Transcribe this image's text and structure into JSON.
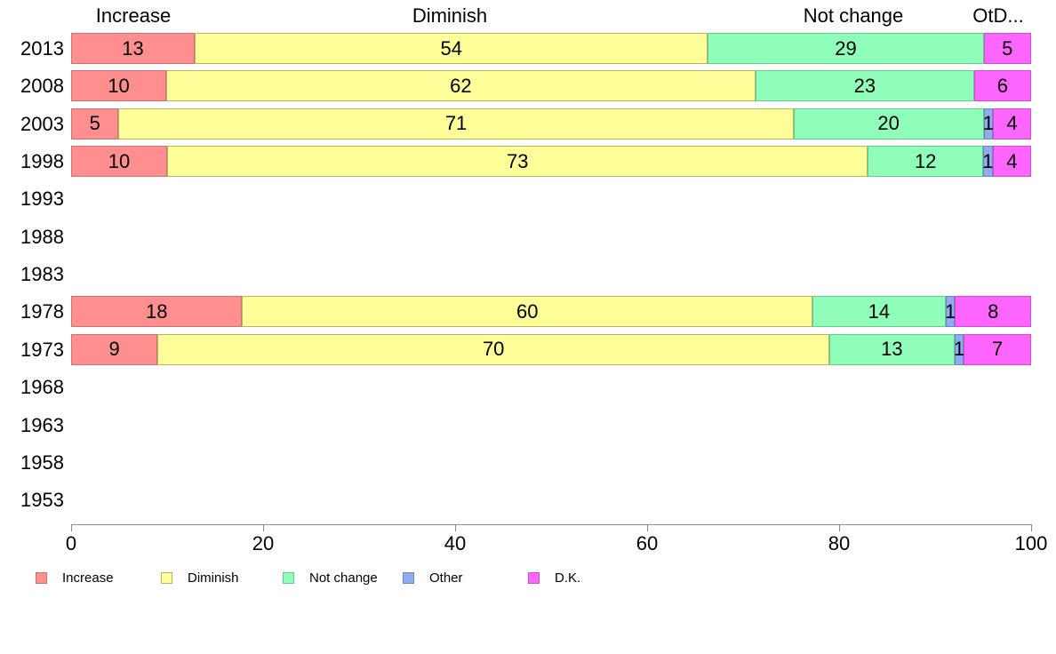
{
  "chart_data": {
    "type": "bar",
    "orientation": "horizontal",
    "stacked": true,
    "categories": [
      "2013",
      "2008",
      "2003",
      "1998",
      "1993",
      "1988",
      "1983",
      "1978",
      "1973",
      "1968",
      "1963",
      "1958",
      "1953"
    ],
    "series": [
      {
        "name": "Increase",
        "color": "#FF8E8E",
        "border_color": "#c97474",
        "values": [
          13,
          10,
          5,
          10,
          null,
          null,
          null,
          18,
          9,
          null,
          null,
          null,
          null
        ]
      },
      {
        "name": "Diminish",
        "color": "#FFFF99",
        "border_color": "#b5b562",
        "values": [
          54,
          62,
          71,
          73,
          null,
          null,
          null,
          60,
          70,
          null,
          null,
          null,
          null
        ]
      },
      {
        "name": "Not change",
        "color": "#90FFB9",
        "border_color": "#67c98b",
        "values": [
          29,
          23,
          20,
          12,
          null,
          null,
          null,
          14,
          13,
          null,
          null,
          null,
          null
        ]
      },
      {
        "name": "Other",
        "color": "#8FADEE",
        "border_color": "#6786c6",
        "values": [
          0,
          0,
          1,
          1,
          null,
          null,
          null,
          1,
          1,
          null,
          null,
          null,
          null
        ]
      },
      {
        "name": "D.K.",
        "color": "#FF66FF",
        "border_color": "#cc4fcc",
        "values": [
          5,
          6,
          4,
          4,
          null,
          null,
          null,
          8,
          7,
          null,
          null,
          null,
          null
        ]
      }
    ],
    "column_headers": [
      "Increase",
      "Diminish",
      "Not change",
      "OtD..."
    ],
    "x_axis": {
      "min": 0,
      "max": 100,
      "ticks": [
        "0",
        "20",
        "40",
        "60",
        "80",
        "100"
      ]
    },
    "legend": [
      {
        "label": "Increase",
        "color": "#FF8E8E",
        "border_color": "#c97474"
      },
      {
        "label": "Diminish",
        "color": "#FFFF99",
        "border_color": "#b5b562"
      },
      {
        "label": "Not change",
        "color": "#90FFB9",
        "border_color": "#67c98b"
      },
      {
        "label": "Other",
        "color": "#8FADEE",
        "border_color": "#6786c6"
      },
      {
        "label": "D.K.",
        "color": "#FF66FF",
        "border_color": "#cc4fcc"
      }
    ],
    "axis_color": "#8c8c8c",
    "layout": "grid off, legend bottom-left, category axis left, value axis bottom"
  }
}
